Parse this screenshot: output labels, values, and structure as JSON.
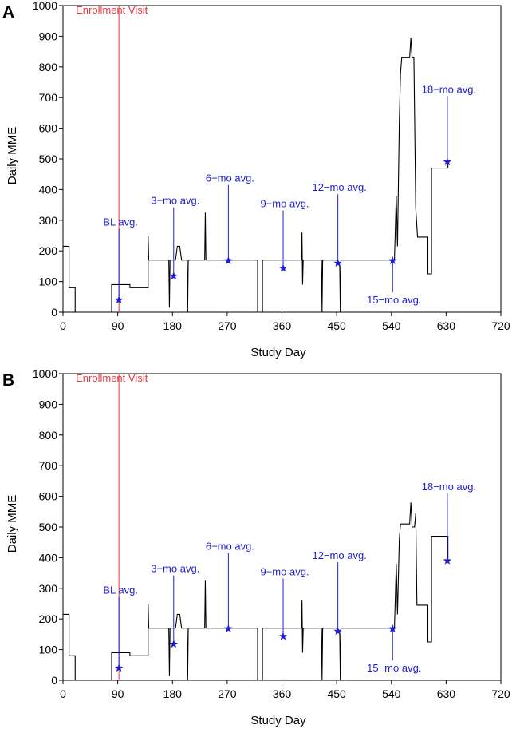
{
  "colors": {
    "line": "#000000",
    "enrollment": "#e8383d",
    "annotation": "#1f1fd2",
    "axis": "#000000"
  },
  "chart_data": [
    {
      "panel_label": "A",
      "type": "line",
      "xlabel": "Study Day",
      "ylabel": "Daily MME",
      "xlim": [
        0,
        720
      ],
      "ylim": [
        0,
        1000
      ],
      "xticks": [
        0,
        90,
        180,
        270,
        360,
        450,
        540,
        630,
        720
      ],
      "yticks": [
        0,
        100,
        200,
        300,
        400,
        500,
        600,
        700,
        800,
        900,
        1000
      ],
      "enrollment": {
        "label": "Enrollment Visit",
        "day": 92
      },
      "series": [
        {
          "name": "Daily MME",
          "points": [
            [
              0,
              215
            ],
            [
              10,
              215
            ],
            [
              10,
              80
            ],
            [
              20,
              80
            ],
            [
              20,
              0
            ],
            [
              80,
              0
            ],
            [
              80,
              90
            ],
            [
              110,
              90
            ],
            [
              110,
              80
            ],
            [
              140,
              80
            ],
            [
              140,
              250
            ],
            [
              141,
              170
            ],
            [
              174,
              170
            ],
            [
              175,
              15
            ],
            [
              176,
              170
            ],
            [
              185,
              170
            ],
            [
              188,
              215
            ],
            [
              192,
              215
            ],
            [
              195,
              170
            ],
            [
              204,
              170
            ],
            [
              205,
              0
            ],
            [
              206,
              170
            ],
            [
              233,
              170
            ],
            [
              234,
              325
            ],
            [
              235,
              170
            ],
            [
              320,
              170
            ],
            [
              320,
              0
            ],
            [
              328,
              0
            ],
            [
              328,
              170
            ],
            [
              392,
              170
            ],
            [
              393,
              260
            ],
            [
              394,
              90
            ],
            [
              395,
              170
            ],
            [
              425,
              170
            ],
            [
              426,
              0
            ],
            [
              427,
              170
            ],
            [
              430,
              170
            ],
            [
              450,
              170
            ],
            [
              455,
              150
            ],
            [
              456,
              0
            ],
            [
              457,
              170
            ],
            [
              545,
              170
            ],
            [
              548,
              380
            ],
            [
              550,
              215
            ],
            [
              553,
              620
            ],
            [
              555,
              780
            ],
            [
              557,
              830
            ],
            [
              570,
              830
            ],
            [
              572,
              895
            ],
            [
              574,
              830
            ],
            [
              577,
              830
            ],
            [
              580,
              340
            ],
            [
              583,
              245
            ],
            [
              600,
              245
            ],
            [
              600,
              125
            ],
            [
              606,
              125
            ],
            [
              606,
              470
            ],
            [
              633,
              470
            ],
            [
              633,
              490
            ]
          ]
        }
      ],
      "annotations": [
        {
          "label": "BL avg.",
          "label_x": 92,
          "label_y": 272,
          "day": 92,
          "value": 40
        },
        {
          "label": "3−mo avg.",
          "label_x": 182,
          "label_y": 342,
          "day": 182,
          "value": 118
        },
        {
          "label": "6−mo avg.",
          "label_x": 272,
          "label_y": 415,
          "day": 272,
          "value": 168
        },
        {
          "label": "9−mo avg.",
          "label_x": 362,
          "label_y": 332,
          "day": 362,
          "value": 143
        },
        {
          "label": "12−mo avg.",
          "label_x": 452,
          "label_y": 385,
          "day": 452,
          "value": 160
        },
        {
          "label": "15−mo avg.",
          "label_x": 542,
          "label_y": 65,
          "day": 542,
          "value": 168
        },
        {
          "label": "18−mo avg.",
          "label_x": 632,
          "label_y": 705,
          "day": 632,
          "value": 490
        }
      ]
    },
    {
      "panel_label": "B",
      "type": "line",
      "xlabel": "Study Day",
      "ylabel": "Daily MME",
      "xlim": [
        0,
        720
      ],
      "ylim": [
        0,
        1000
      ],
      "xticks": [
        0,
        90,
        180,
        270,
        360,
        450,
        540,
        630,
        720
      ],
      "yticks": [
        0,
        100,
        200,
        300,
        400,
        500,
        600,
        700,
        800,
        900,
        1000
      ],
      "enrollment": {
        "label": "Enrollment Visit",
        "day": 92
      },
      "series": [
        {
          "name": "Daily MME",
          "points": [
            [
              0,
              215
            ],
            [
              10,
              215
            ],
            [
              10,
              80
            ],
            [
              20,
              80
            ],
            [
              20,
              0
            ],
            [
              80,
              0
            ],
            [
              80,
              90
            ],
            [
              110,
              90
            ],
            [
              110,
              80
            ],
            [
              140,
              80
            ],
            [
              140,
              250
            ],
            [
              141,
              170
            ],
            [
              174,
              170
            ],
            [
              175,
              15
            ],
            [
              176,
              170
            ],
            [
              185,
              170
            ],
            [
              188,
              215
            ],
            [
              192,
              215
            ],
            [
              195,
              170
            ],
            [
              204,
              170
            ],
            [
              205,
              0
            ],
            [
              206,
              170
            ],
            [
              233,
              170
            ],
            [
              234,
              325
            ],
            [
              235,
              170
            ],
            [
              320,
              170
            ],
            [
              320,
              0
            ],
            [
              328,
              0
            ],
            [
              328,
              170
            ],
            [
              392,
              170
            ],
            [
              393,
              260
            ],
            [
              394,
              90
            ],
            [
              395,
              170
            ],
            [
              425,
              170
            ],
            [
              426,
              0
            ],
            [
              427,
              170
            ],
            [
              430,
              170
            ],
            [
              450,
              170
            ],
            [
              455,
              150
            ],
            [
              456,
              0
            ],
            [
              457,
              170
            ],
            [
              545,
              170
            ],
            [
              548,
              380
            ],
            [
              550,
              215
            ],
            [
              553,
              460
            ],
            [
              555,
              510
            ],
            [
              570,
              510
            ],
            [
              572,
              580
            ],
            [
              574,
              500
            ],
            [
              578,
              500
            ],
            [
              580,
              545
            ],
            [
              582,
              245
            ],
            [
              600,
              245
            ],
            [
              600,
              125
            ],
            [
              606,
              125
            ],
            [
              606,
              470
            ],
            [
              633,
              470
            ],
            [
              633,
              390
            ]
          ]
        }
      ],
      "annotations": [
        {
          "label": "BL avg.",
          "label_x": 92,
          "label_y": 272,
          "day": 92,
          "value": 40
        },
        {
          "label": "3−mo avg.",
          "label_x": 182,
          "label_y": 342,
          "day": 182,
          "value": 118
        },
        {
          "label": "6−mo avg.",
          "label_x": 272,
          "label_y": 415,
          "day": 272,
          "value": 168
        },
        {
          "label": "9−mo avg.",
          "label_x": 362,
          "label_y": 332,
          "day": 362,
          "value": 143
        },
        {
          "label": "12−mo avg.",
          "label_x": 452,
          "label_y": 385,
          "day": 452,
          "value": 160
        },
        {
          "label": "15−mo avg.",
          "label_x": 542,
          "label_y": 65,
          "day": 542,
          "value": 168
        },
        {
          "label": "18−mo avg.",
          "label_x": 632,
          "label_y": 610,
          "day": 632,
          "value": 390
        }
      ]
    }
  ]
}
